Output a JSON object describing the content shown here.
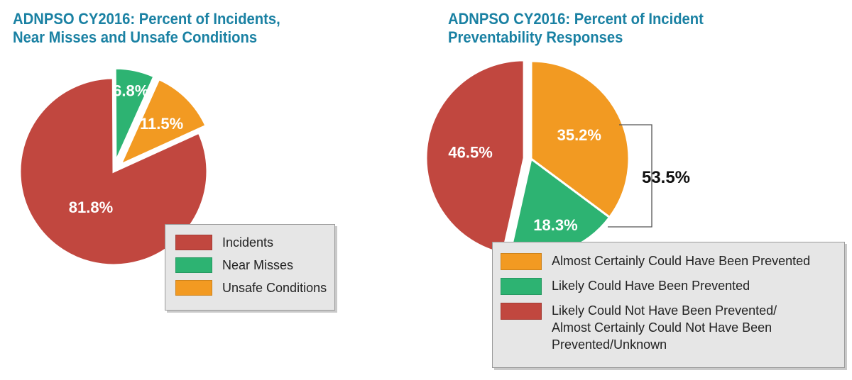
{
  "colors": {
    "incidents": "#c1473f",
    "near_misses": "#2db372",
    "unsafe_conditions": "#f29a22",
    "almost_certainly": "#f29a22",
    "likely": "#2db372",
    "not_prevented": "#c1473f",
    "title": "#1a81a3"
  },
  "chart_data": [
    {
      "type": "pie",
      "title": [
        "ADNPSO CY2016: Percent of Incidents,",
        "Near Misses and Unsafe Conditions"
      ],
      "categories": [
        "Incidents",
        "Near Misses",
        "Unsafe Conditions"
      ],
      "values": [
        81.8,
        6.8,
        11.5
      ],
      "labels": [
        "81.8%",
        "6.8%",
        "11.5%"
      ],
      "exploded": [
        "Near Misses",
        "Unsafe Conditions"
      ],
      "legend": [
        "Incidents",
        "Near Misses",
        "Unsafe Conditions"
      ],
      "legend_position": "bottom-right"
    },
    {
      "type": "pie",
      "title": [
        "ADNPSO CY2016: Percent of Incident",
        "Preventability Responses"
      ],
      "categories": [
        "Almost Certainly Could Have Been Prevented",
        "Likely Could Have Been Prevented",
        "Likely Could Not Have Been Prevented/ Almost Certainly Could Not Have Been Prevented/Unknown"
      ],
      "values": [
        35.2,
        18.3,
        46.5
      ],
      "labels": [
        "35.2%",
        "18.3%",
        "46.5%"
      ],
      "exploded": [
        "Likely Could Not Have Been Prevented/ Almost Certainly Could Not Have Been Prevented/Unknown"
      ],
      "bracket_label": "53.5%",
      "legend": [
        [
          "Almost Certainly Could Have Been Prevented"
        ],
        [
          "Likely Could Have Been Prevented"
        ],
        [
          "Likely Could Not Have Been Prevented/",
          "Almost Certainly Could Not Have Been",
          "Prevented/Unknown"
        ]
      ],
      "legend_position": "bottom"
    }
  ]
}
